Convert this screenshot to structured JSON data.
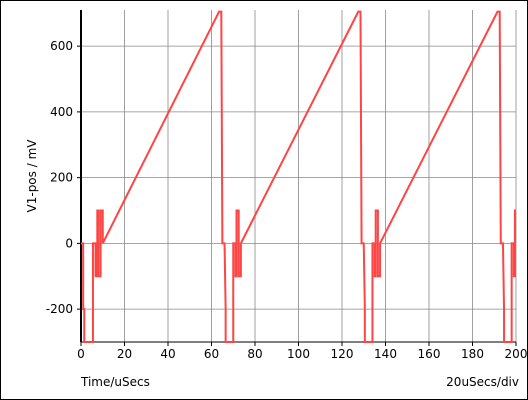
{
  "chart_data": {
    "type": "line",
    "xlabel": "Time/uSecs",
    "ylabel": "V1-pos / mV",
    "scale_label": "20uSecs/div",
    "xlim": [
      0,
      200
    ],
    "ylim": [
      -300,
      710
    ],
    "x_ticks": [
      0,
      20,
      40,
      60,
      80,
      100,
      120,
      140,
      160,
      180,
      200
    ],
    "y_ticks": [
      -200,
      0,
      200,
      400,
      600
    ],
    "grid": true,
    "color": "#ff4444",
    "series": [
      {
        "x": [
          0,
          1.0,
          1.0,
          1.5,
          1.5,
          5.5,
          5.5,
          6.7,
          6.7,
          7.5,
          7.5,
          8.0,
          8.0,
          9.0,
          9.0,
          10.0,
          10.0,
          63.5,
          64.5,
          65.0,
          65.0,
          66.0,
          66.0,
          66.5,
          66.5,
          70.0,
          70.0,
          71.0,
          71.0,
          71.5,
          71.5,
          72.5,
          72.5,
          73.5,
          73.5,
          127.5,
          128.5,
          129.0,
          129.0,
          130.0,
          130.0,
          130.5,
          130.5,
          134.0,
          134.0,
          135.0,
          135.0,
          135.5,
          135.5,
          136.5,
          136.5,
          137.5,
          137.5,
          191.5,
          192.5,
          193.0,
          193.0,
          194.0,
          194.0,
          194.5,
          194.5,
          198.0,
          198.0,
          199.0,
          199.0,
          199.5,
          199.5,
          200
        ],
        "y": [
          0,
          0,
          -200,
          -200,
          -300,
          -300,
          0,
          0,
          -100,
          -100,
          100,
          100,
          -100,
          -100,
          100,
          100,
          0,
          705,
          705,
          0,
          0,
          0,
          0,
          -200,
          -300,
          -300,
          0,
          0,
          -100,
          -100,
          100,
          100,
          -100,
          -100,
          0,
          705,
          705,
          0,
          0,
          0,
          0,
          -200,
          -300,
          -300,
          0,
          0,
          -100,
          -100,
          100,
          100,
          -100,
          -100,
          0,
          705,
          705,
          0,
          0,
          0,
          0,
          -200,
          -300,
          -300,
          0,
          0,
          -100,
          -100,
          100,
          100
        ]
      }
    ]
  }
}
